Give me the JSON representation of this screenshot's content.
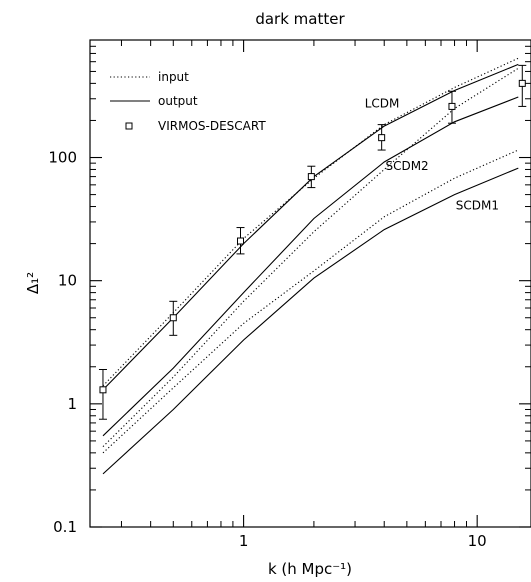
{
  "chart_data": {
    "type": "line",
    "title": "dark matter",
    "xlabel": "k (h Mpc⁻¹)",
    "ylabel": "Δ₁²",
    "xscale": "log",
    "yscale": "log",
    "xlim": [
      0.22,
      17
    ],
    "ylim": [
      0.1,
      900
    ],
    "xticks": [
      {
        "value": 1,
        "label": "1"
      },
      {
        "value": 10,
        "label": "10"
      }
    ],
    "yticks": [
      {
        "value": 0.1,
        "label": "0.1"
      },
      {
        "value": 1,
        "label": "1"
      },
      {
        "value": 10,
        "label": "10"
      },
      {
        "value": 100,
        "label": "100"
      }
    ],
    "legend": {
      "position": "top-left",
      "entries": [
        {
          "label": "input",
          "style": "dotted"
        },
        {
          "label": "output",
          "style": "solid"
        },
        {
          "label": "VIRMOS-DESCART",
          "style": "square-marker"
        }
      ]
    },
    "series": [
      {
        "model": "LCDM",
        "kind": "input",
        "x": [
          0.25,
          0.5,
          1,
          2,
          4,
          8,
          15
        ],
        "y": [
          1.4,
          5.5,
          22,
          68,
          185,
          370,
          640
        ]
      },
      {
        "model": "LCDM",
        "kind": "output",
        "x": [
          0.25,
          0.5,
          1,
          2,
          4,
          8,
          15
        ],
        "y": [
          1.3,
          5.0,
          20,
          70,
          180,
          350,
          570
        ]
      },
      {
        "model": "SCDM2",
        "kind": "input",
        "x": [
          0.25,
          0.5,
          1,
          2,
          4,
          8,
          15
        ],
        "y": [
          0.45,
          1.65,
          6.8,
          25,
          80,
          250,
          530
        ]
      },
      {
        "model": "SCDM2",
        "kind": "output",
        "x": [
          0.25,
          0.5,
          1,
          2,
          4,
          8,
          15
        ],
        "y": [
          0.55,
          1.95,
          8,
          32,
          92,
          195,
          310
        ]
      },
      {
        "model": "SCDM1",
        "kind": "input",
        "x": [
          0.25,
          0.5,
          1,
          2,
          4,
          8,
          15
        ],
        "y": [
          0.4,
          1.35,
          4.5,
          12,
          33,
          68,
          115
        ]
      },
      {
        "model": "SCDM1",
        "kind": "output",
        "x": [
          0.25,
          0.5,
          1,
          2,
          4,
          8,
          15
        ],
        "y": [
          0.27,
          0.9,
          3.3,
          10.5,
          26,
          50,
          82
        ]
      }
    ],
    "observations": {
      "name": "VIRMOS-DESCART",
      "x": [
        0.25,
        0.5,
        0.97,
        1.95,
        3.9,
        7.8,
        15.6
      ],
      "y": [
        1.3,
        5.0,
        21,
        70,
        145,
        260,
        400
      ],
      "yerr_low": [
        0.75,
        3.6,
        16.5,
        57,
        115,
        190,
        260
      ],
      "yerr_high": [
        1.9,
        6.8,
        27,
        85,
        185,
        345,
        560
      ]
    },
    "annotations": [
      {
        "text": "LCDM",
        "x": 3.3,
        "y": 255
      },
      {
        "text": "SCDM2",
        "x": 4.05,
        "y": 79
      },
      {
        "text": "SCDM1",
        "x": 8.1,
        "y": 38
      }
    ],
    "grid": false
  }
}
